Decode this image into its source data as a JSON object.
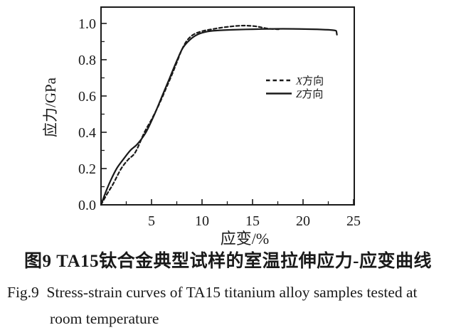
{
  "figure": {
    "caption_zh": "图9 TA15钛合金典型试样的室温拉伸应力-应变曲线",
    "caption_en_line1": "Fig.9  Stress-strain curves of TA15 titanium alloy samples tested at",
    "caption_en_line2": "room temperature"
  },
  "chart_data": {
    "type": "line",
    "title": "",
    "xlabel": "应变/%",
    "ylabel": "应力/GPa",
    "xlim": [
      0,
      25
    ],
    "ylim": [
      0,
      1.09
    ],
    "xticks": [
      5,
      10,
      15,
      20,
      25
    ],
    "xtick_labels": [
      "5",
      "10",
      "15",
      "20",
      "25"
    ],
    "x_minor_ticks": [
      2.5,
      7.5,
      12.5,
      17.5,
      22.5
    ],
    "yticks": [
      0.0,
      0.2,
      0.4,
      0.6,
      0.8,
      1.0
    ],
    "ytick_labels": [
      "0.0",
      "0.2",
      "0.4",
      "0.6",
      "0.8",
      "1.0"
    ],
    "y_minor_ticks": [
      0.1,
      0.3,
      0.5,
      0.7,
      0.9
    ],
    "grid": false,
    "legend_position": "inside-right-upper",
    "line_color": "#1a1a1a",
    "background_color": "#ffffff",
    "series": [
      {
        "name": "X方向",
        "style": "dashed",
        "points": [
          [
            0,
            0
          ],
          [
            0.6,
            0.06
          ],
          [
            1.2,
            0.115
          ],
          [
            2.0,
            0.2
          ],
          [
            2.7,
            0.25
          ],
          [
            3.4,
            0.29
          ],
          [
            4.3,
            0.4
          ],
          [
            5.0,
            0.47
          ],
          [
            5.5,
            0.525
          ],
          [
            6.0,
            0.585
          ],
          [
            6.5,
            0.65
          ],
          [
            7.0,
            0.715
          ],
          [
            7.5,
            0.785
          ],
          [
            8.0,
            0.855
          ],
          [
            8.5,
            0.905
          ],
          [
            9.0,
            0.933
          ],
          [
            9.5,
            0.948
          ],
          [
            10.2,
            0.96
          ],
          [
            11.0,
            0.968
          ],
          [
            11.8,
            0.976
          ],
          [
            12.8,
            0.983
          ],
          [
            13.6,
            0.987
          ],
          [
            14.3,
            0.988
          ],
          [
            15.2,
            0.985
          ],
          [
            15.9,
            0.978
          ],
          [
            16.5,
            0.972
          ],
          [
            17.2,
            0.969
          ],
          [
            17.6,
            0.968
          ]
        ]
      },
      {
        "name": "Z方向",
        "style": "solid",
        "points": [
          [
            0,
            0
          ],
          [
            0.5,
            0.075
          ],
          [
            1.0,
            0.14
          ],
          [
            1.55,
            0.2
          ],
          [
            2.2,
            0.25
          ],
          [
            2.9,
            0.3
          ],
          [
            3.6,
            0.335
          ],
          [
            4.45,
            0.4
          ],
          [
            5.3,
            0.5
          ],
          [
            6.05,
            0.6
          ],
          [
            6.8,
            0.7
          ],
          [
            7.55,
            0.8
          ],
          [
            8.1,
            0.865
          ],
          [
            8.8,
            0.91
          ],
          [
            9.6,
            0.94
          ],
          [
            10.5,
            0.955
          ],
          [
            11.5,
            0.961
          ],
          [
            13.0,
            0.965
          ],
          [
            15.0,
            0.968
          ],
          [
            17.0,
            0.97
          ],
          [
            19.0,
            0.97
          ],
          [
            21.0,
            0.968
          ],
          [
            22.5,
            0.965
          ],
          [
            23.2,
            0.961
          ],
          [
            23.3,
            0.955
          ],
          [
            23.35,
            0.938
          ]
        ]
      }
    ]
  }
}
